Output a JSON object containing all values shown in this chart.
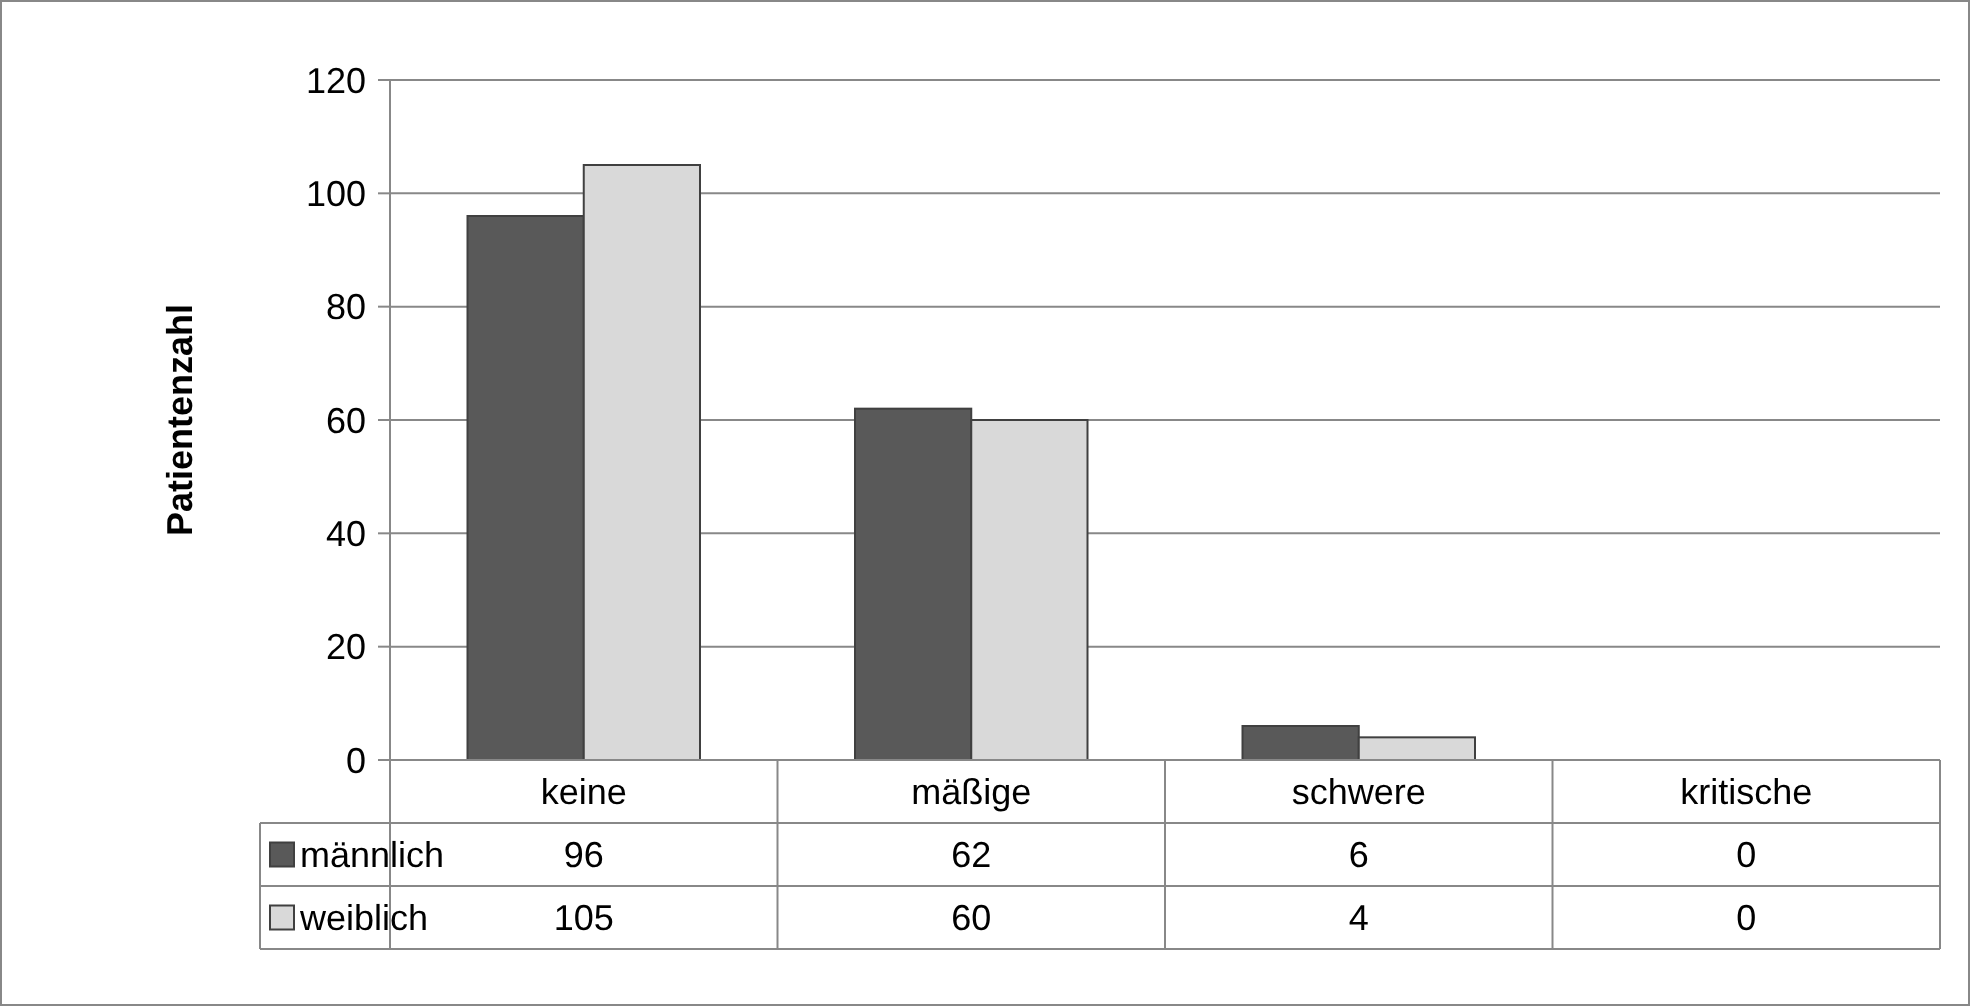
{
  "chart_data": {
    "type": "bar",
    "ylabel": "Patientenzahl",
    "categories": [
      "keine",
      "mäßige",
      "schwere",
      "kritische"
    ],
    "series": [
      {
        "name": "männlich",
        "color": "#595959",
        "values": [
          96,
          62,
          6,
          0
        ]
      },
      {
        "name": "weiblich",
        "color": "#d9d9d9",
        "values": [
          105,
          60,
          4,
          0
        ]
      }
    ],
    "ylim": [
      0,
      120
    ],
    "yticks": [
      0,
      20,
      40,
      60,
      80,
      100,
      120
    ],
    "grid": "y",
    "legend": "bottom",
    "data_labels": true
  }
}
